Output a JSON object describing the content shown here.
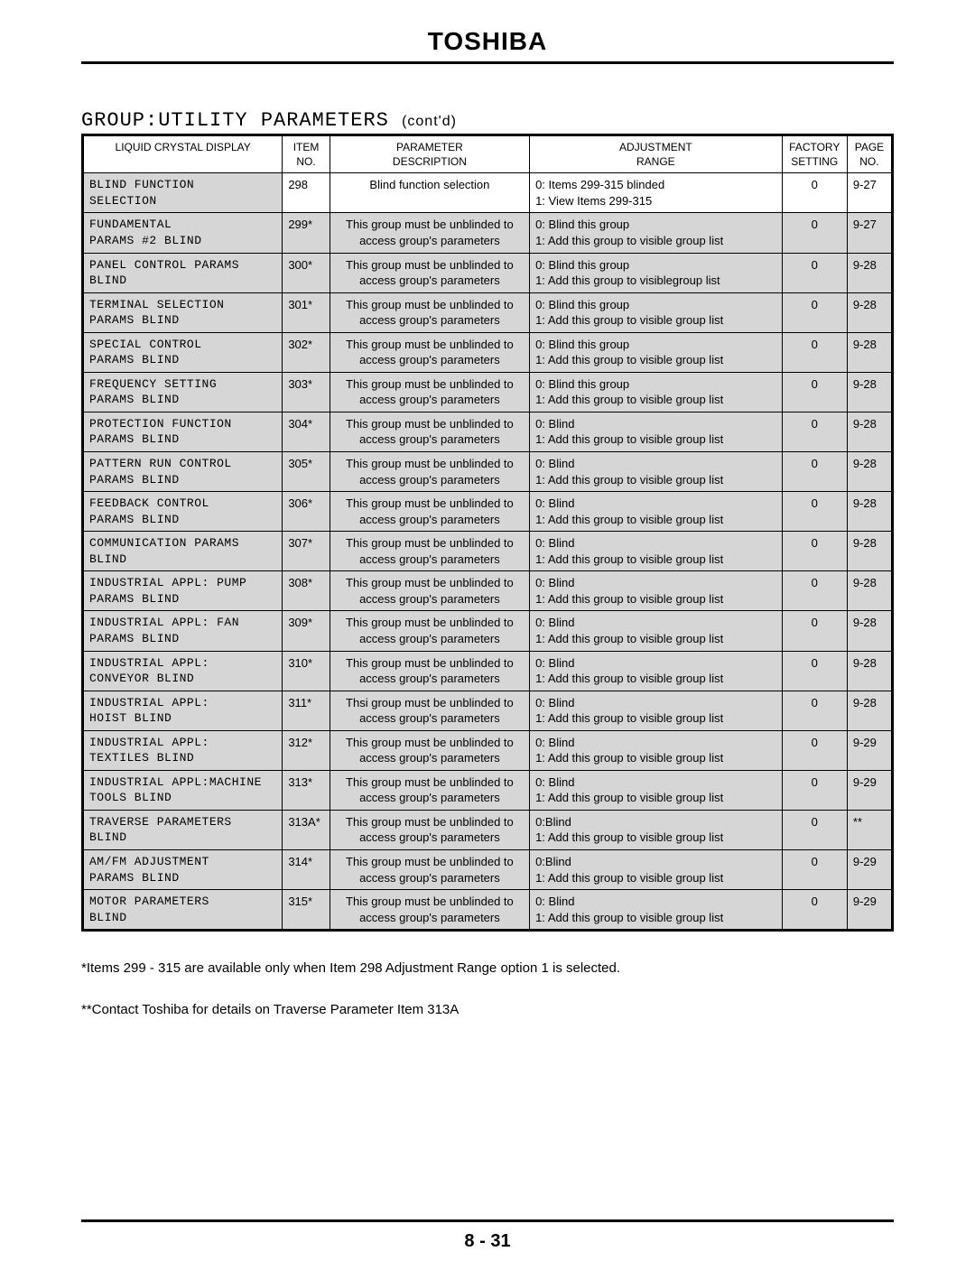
{
  "brand": "TOSHIBA",
  "group_title_mono": "GROUP:UTILITY PARAMETERS",
  "group_title_contd": "(cont'd)",
  "columns": {
    "lcd": "LIQUID CRYSTAL DISPLAY",
    "item_l1": "ITEM",
    "item_l2": "NO.",
    "desc_l1": "PARAMETER",
    "desc_l2": "DESCRIPTION",
    "adj_l1": "ADJUSTMENT",
    "adj_l2": "RANGE",
    "fact_l1": "FACTORY",
    "fact_l2": "SETTING",
    "page_l1": "PAGE",
    "page_l2": "NO."
  },
  "rows": [
    {
      "shaded": false,
      "lcd": "BLIND FUNCTION\nSELECTION",
      "item": "298",
      "desc": "Blind function selection",
      "adj": "0: Items 299-315 blinded\n1: View Items 299-315",
      "fact": "0",
      "page": "9-27"
    },
    {
      "shaded": true,
      "lcd": "FUNDAMENTAL\nPARAMS #2 BLIND",
      "item": "299*",
      "desc": "This group must be unblinded to\naccess group's parameters",
      "adj": "0: Blind this group\n1: Add this group to visible group list",
      "fact": "0",
      "page": "9-27"
    },
    {
      "shaded": true,
      "lcd": "PANEL CONTROL PARAMS\nBLIND",
      "item": "300*",
      "desc": "This group must be unblinded to\naccess group's parameters",
      "adj": "0: Blind this group\n1: Add this group to visiblegroup list",
      "fact": "0",
      "page": "9-28"
    },
    {
      "shaded": true,
      "lcd": "TERMINAL SELECTION\nPARAMS BLIND",
      "item": "301*",
      "desc": "This group must be unblinded to\naccess group's parameters",
      "adj": "0: Blind this group\n1: Add this group to visible group list",
      "fact": "0",
      "page": "9-28"
    },
    {
      "shaded": true,
      "lcd": "SPECIAL CONTROL\nPARAMS BLIND",
      "item": "302*",
      "desc": "This group must be unblinded to\naccess group's parameters",
      "adj": "0: Blind this group\n1: Add this group to visible group list",
      "fact": "0",
      "page": "9-28"
    },
    {
      "shaded": true,
      "lcd": "FREQUENCY SETTING\nPARAMS BLIND",
      "item": "303*",
      "desc": "This group must be unblinded to\naccess group's parameters",
      "adj": "0: Blind this group\n1: Add this group to visible group list",
      "fact": "0",
      "page": "9-28"
    },
    {
      "shaded": true,
      "lcd": "PROTECTION FUNCTION\nPARAMS BLIND",
      "item": "304*",
      "desc": "This group must be unblinded to\naccess group's parameters",
      "adj": "0: Blind\n1: Add this group to visible group list",
      "fact": "0",
      "page": "9-28"
    },
    {
      "shaded": true,
      "lcd": "PATTERN RUN CONTROL\nPARAMS BLIND",
      "item": "305*",
      "desc": "This group must be unblinded to\naccess group's parameters",
      "adj": "0: Blind\n1: Add this group to visible group list",
      "fact": "0",
      "page": "9-28"
    },
    {
      "shaded": true,
      "lcd": "FEEDBACK CONTROL\nPARAMS BLIND",
      "item": "306*",
      "desc": "This group must be unblinded to\naccess group's parameters",
      "adj": "0: Blind\n1: Add this group to visible group list",
      "fact": "0",
      "page": "9-28"
    },
    {
      "shaded": true,
      "lcd": "COMMUNICATION PARAMS\nBLIND",
      "item": "307*",
      "desc": "This group must be unblinded to\naccess group's parameters",
      "adj": "0: Blind\n1: Add this group to visible group list",
      "fact": "0",
      "page": "9-28"
    },
    {
      "shaded": true,
      "lcd": "INDUSTRIAL APPL: PUMP\nPARAMS BLIND",
      "item": "308*",
      "desc": "This group must be unblinded to\naccess group's parameters",
      "adj": "0: Blind\n1: Add this group to visible group list",
      "fact": "0",
      "page": "9-28"
    },
    {
      "shaded": true,
      "lcd": "INDUSTRIAL APPL: FAN\nPARAMS BLIND",
      "item": "309*",
      "desc": "This group must be unblinded to\naccess group's parameters",
      "adj": "0: Blind\n1: Add this group to visible group list",
      "fact": "0",
      "page": "9-28"
    },
    {
      "shaded": true,
      "lcd": "INDUSTRIAL APPL:\nCONVEYOR BLIND",
      "item": "310*",
      "desc": "This group must be unblinded to\naccess group's parameters",
      "adj": "0: Blind\n1: Add this group to visible group list",
      "fact": "0",
      "page": "9-28"
    },
    {
      "shaded": true,
      "lcd": "INDUSTRIAL APPL:\nHOIST BLIND",
      "item": "311*",
      "desc": "Thsi group must be unblinded to\naccess group's parameters",
      "adj": "0: Blind\n1: Add this group to visible group list",
      "fact": "0",
      "page": "9-28"
    },
    {
      "shaded": true,
      "lcd": "INDUSTRIAL APPL:\nTEXTILES BLIND",
      "item": "312*",
      "desc": "This group must be unblinded to\naccess group's parameters",
      "adj": "0: Blind\n1: Add this group to visible group list",
      "fact": "0",
      "page": "9-29"
    },
    {
      "shaded": true,
      "lcd": "INDUSTRIAL APPL:MACHINE\nTOOLS BLIND",
      "item": "313*",
      "desc": "This group must be unblinded to\naccess group's parameters",
      "adj": "0: Blind\n1: Add this group to visible group list",
      "fact": "0",
      "page": "9-29"
    },
    {
      "shaded": true,
      "lcd": "TRAVERSE PARAMETERS\nBLIND",
      "item": "313A*",
      "desc": "This group must be unblinded to\naccess group's parameters",
      "adj": "0:Blind\n1: Add this group to visible group list",
      "fact": "0",
      "page": "**"
    },
    {
      "shaded": true,
      "lcd": "AM/FM ADJUSTMENT\nPARAMS BLIND",
      "item": "314*",
      "desc": "This group must be unblinded to\naccess group's parameters",
      "adj": "0:Blind\n1: Add this group to visible group list",
      "fact": "0",
      "page": "9-29"
    },
    {
      "shaded": true,
      "lcd": "MOTOR PARAMETERS\nBLIND",
      "item": "315*",
      "desc": "This group must be unblinded to\naccess group's parameters",
      "adj": "0: Blind\n1: Add this group to visible group list",
      "fact": "0",
      "page": "9-29"
    }
  ],
  "notes": [
    "*Items 299 - 315 are available only when Item 298 Adjustment Range option 1 is selected.",
    "**Contact Toshiba for details on Traverse Parameter Item 313A"
  ],
  "footer_page": "8 - 31",
  "style": {
    "shaded_bg": "#d6d6d6",
    "border_color": "#000000",
    "page_bg": "#ffffff",
    "mono_font": "Courier New",
    "body_font": "Arial"
  }
}
